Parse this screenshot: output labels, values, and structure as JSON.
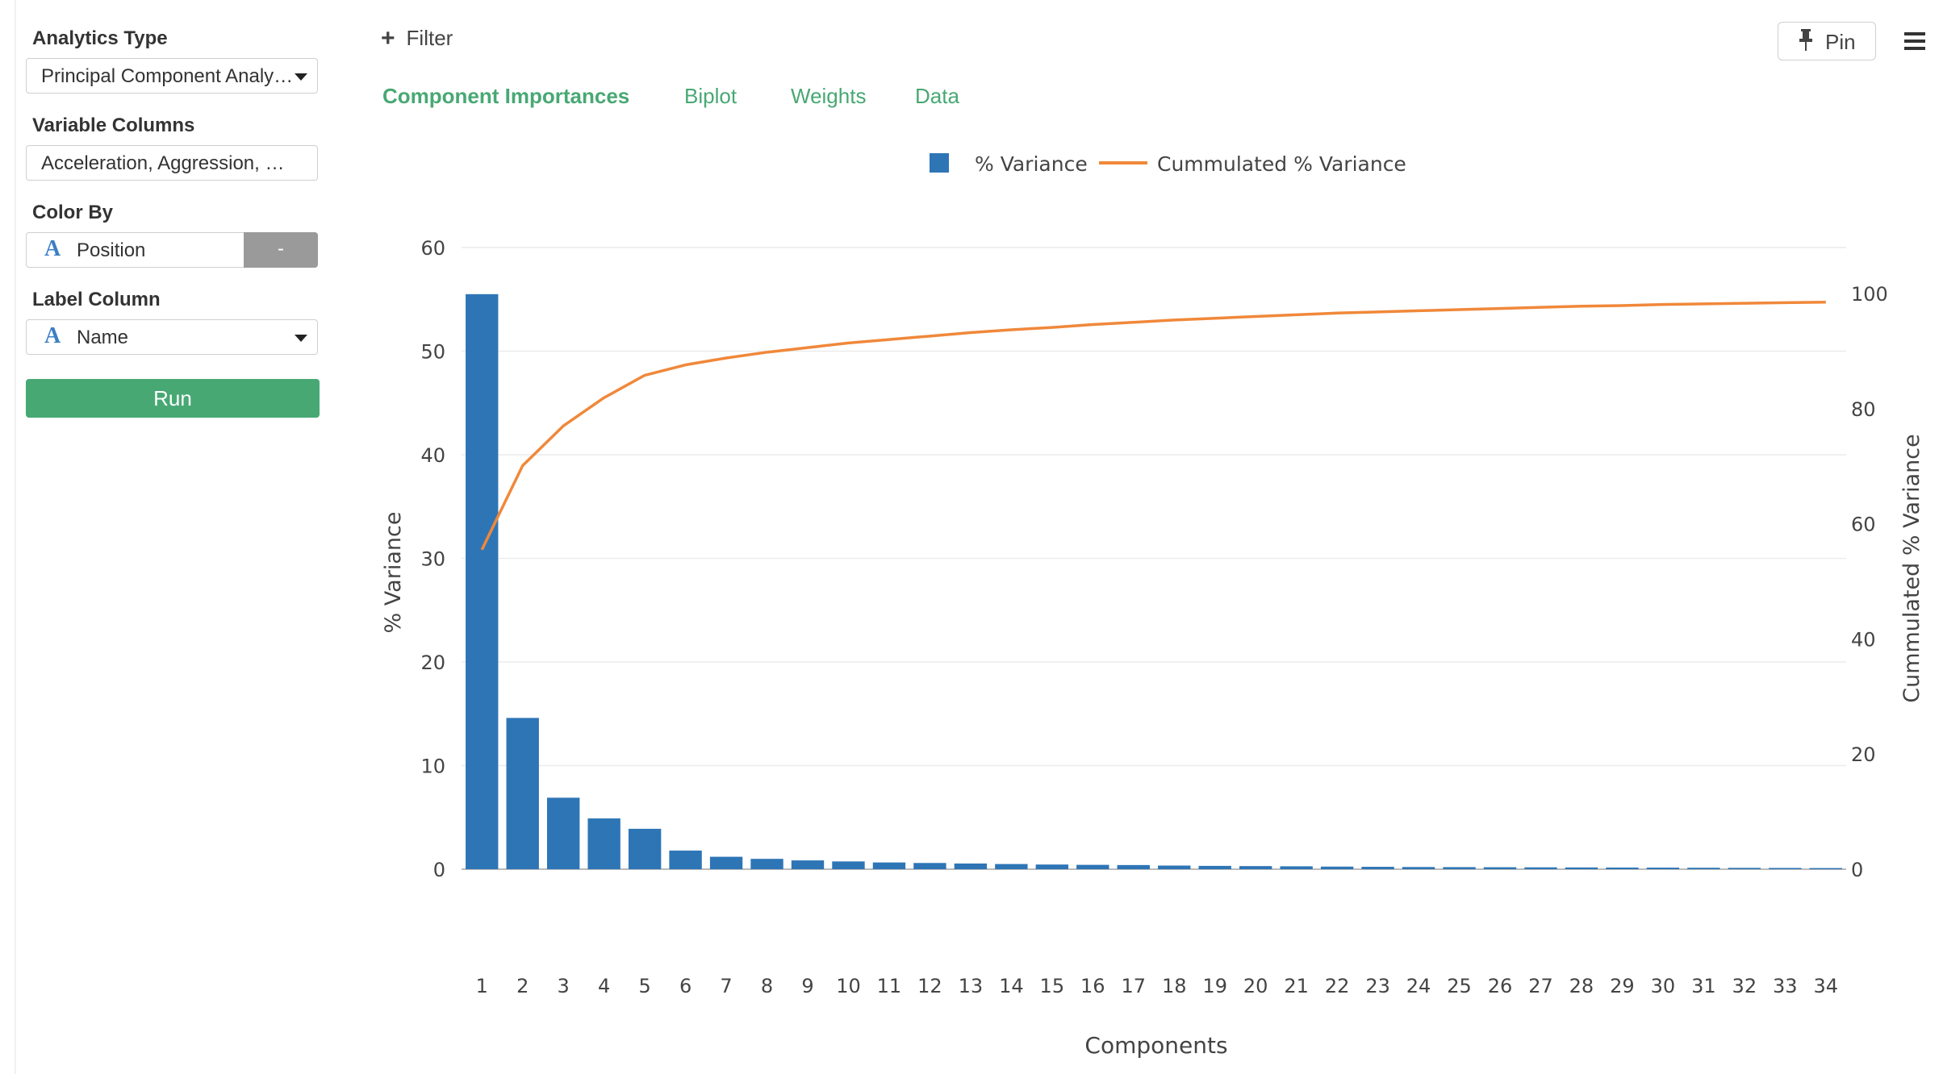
{
  "sidebar": {
    "analytics_type_label": "Analytics Type",
    "analytics_type_value": "Principal Component Analy…",
    "variable_columns_label": "Variable Columns",
    "variable_columns_value": "Acceleration, Aggression, …",
    "color_by_label": "Color By",
    "color_by_type_glyph": "A",
    "color_by_value": "Position",
    "color_by_button": "-",
    "label_column_label": "Label Column",
    "label_column_type_glyph": "A",
    "label_column_value": "Name",
    "run_label": "Run"
  },
  "toolbar": {
    "filter_icon": "+",
    "filter_label": "Filter",
    "pin_label": "Pin",
    "menu_icon": "hamburger-icon"
  },
  "tabs": [
    {
      "label": "Component Importances",
      "active": true
    },
    {
      "label": "Biplot",
      "active": false
    },
    {
      "label": "Weights",
      "active": false
    },
    {
      "label": "Data",
      "active": false
    }
  ],
  "colors": {
    "accent_green": "#48a874",
    "bar_blue": "#2e75b6",
    "line_orange": "#f0883a"
  },
  "chart_data": {
    "type": "bar",
    "categories": [
      "1",
      "2",
      "3",
      "4",
      "5",
      "6",
      "7",
      "8",
      "9",
      "10",
      "11",
      "12",
      "13",
      "14",
      "15",
      "16",
      "17",
      "18",
      "19",
      "20",
      "21",
      "22",
      "23",
      "24",
      "25",
      "26",
      "27",
      "28",
      "29",
      "30",
      "31",
      "32",
      "33",
      "34"
    ],
    "series": [
      {
        "name": "% Variance",
        "type": "bar",
        "axis": "left",
        "values": [
          55.5,
          14.6,
          6.9,
          4.9,
          3.9,
          1.8,
          1.2,
          1.0,
          0.85,
          0.75,
          0.65,
          0.6,
          0.55,
          0.5,
          0.45,
          0.42,
          0.4,
          0.35,
          0.32,
          0.3,
          0.28,
          0.25,
          0.23,
          0.21,
          0.2,
          0.19,
          0.18,
          0.17,
          0.16,
          0.15,
          0.14,
          0.13,
          0.12,
          0.11
        ]
      },
      {
        "name": "Cummulated % Variance",
        "type": "line",
        "axis": "right",
        "values": [
          55.5,
          70.1,
          77.0,
          81.9,
          85.8,
          87.6,
          88.8,
          89.8,
          90.6,
          91.4,
          92.0,
          92.6,
          93.2,
          93.7,
          94.1,
          94.6,
          95.0,
          95.4,
          95.7,
          96.0,
          96.3,
          96.6,
          96.8,
          97.0,
          97.2,
          97.4,
          97.6,
          97.8,
          97.9,
          98.1,
          98.2,
          98.3,
          98.4,
          98.5
        ]
      }
    ],
    "xlabel": "Components",
    "ylabel": "% Variance",
    "y2label": "Cummulated % Variance",
    "ylim": [
      0,
      60
    ],
    "y2lim": [
      0,
      100
    ],
    "yticks": [
      0,
      10,
      20,
      30,
      40,
      50,
      60
    ],
    "y2ticks": [
      0,
      20,
      40,
      60,
      80,
      100
    ],
    "grid": true,
    "legend_position": "top-center"
  }
}
